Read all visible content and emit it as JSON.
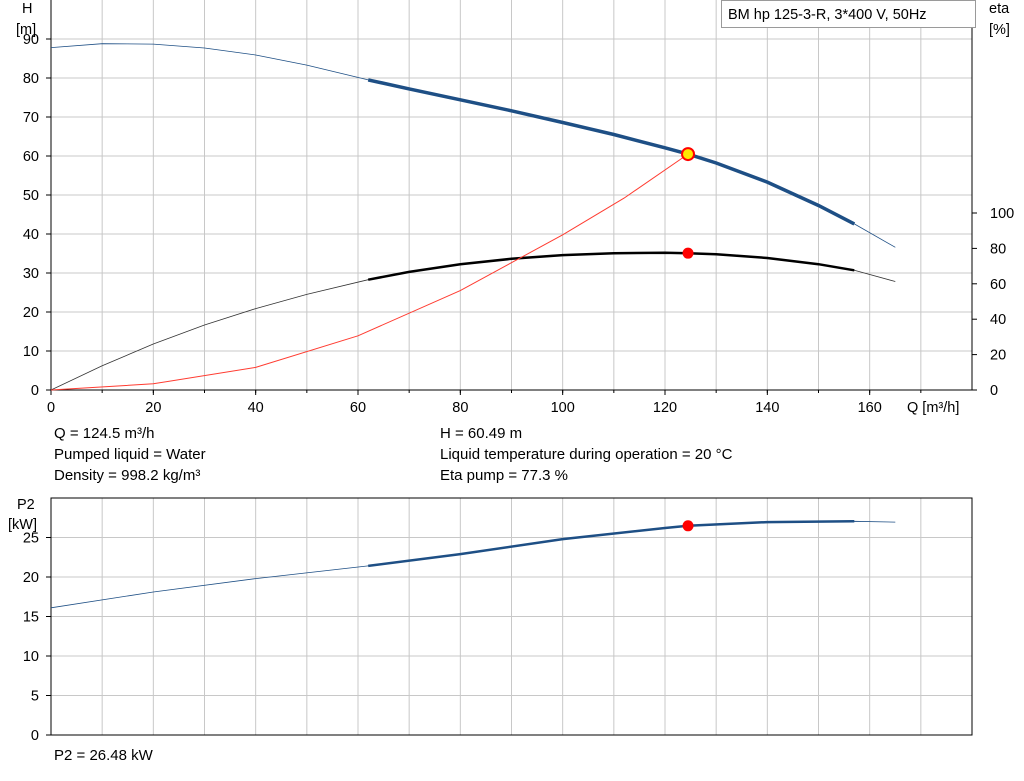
{
  "pump_title": "BM hp 125-3-R, 3*400 V, 50Hz",
  "info": {
    "q": "Q = 124.5 m³/h",
    "liquid": "Pumped liquid = Water",
    "density": "Density = 998.2 kg/m³",
    "h": "H = 60.49 m",
    "temperature": "Liquid temperature during operation = 20 °C",
    "eta": "Eta pump = 77.3 %",
    "p2": "P2 = 26.48 kW"
  },
  "colors": {
    "head_curve": "#1e4f85",
    "eta_curve": "#000000",
    "system_curve": "#ff3b30",
    "grid": "#c8c8c8",
    "marker_red": "#ff0000",
    "marker_yellow": "#ffe600"
  },
  "chart_data": [
    {
      "type": "line",
      "xlabel": "Q [m³/h]",
      "xlim": [
        0,
        180
      ],
      "x_ticks": [
        0,
        20,
        40,
        60,
        80,
        100,
        120,
        140,
        160
      ],
      "left_axis": {
        "label_line1": "H",
        "label_line2": "[m]",
        "ylim": [
          0,
          100
        ],
        "ticks": [
          0,
          10,
          20,
          30,
          40,
          50,
          60,
          70,
          80,
          90
        ]
      },
      "right_axis": {
        "label_line1": "eta",
        "label_line2": "[%]",
        "ylim": [
          0,
          100
        ],
        "ticks": [
          0,
          20,
          40,
          60,
          80,
          100
        ]
      },
      "grid": true,
      "operating_range": [
        62,
        157
      ],
      "series": [
        {
          "axis": "left",
          "x": [
            0,
            10,
            20,
            30,
            40,
            50,
            62,
            70,
            80,
            90,
            100,
            110,
            120,
            124.5,
            130,
            140,
            150,
            157,
            165
          ],
          "values": [
            87.8,
            88.8,
            88.7,
            87.7,
            85.9,
            83.3,
            79.5,
            77.2,
            74.4,
            71.6,
            68.6,
            65.5,
            62.1,
            60.49,
            58.2,
            53.3,
            47.3,
            42.6,
            36.6
          ]
        },
        {
          "axis": "right",
          "x": [
            0,
            10,
            20,
            30,
            40,
            50,
            62,
            70,
            80,
            90,
            100,
            110,
            120,
            124.5,
            130,
            140,
            150,
            157,
            165
          ],
          "values": [
            0,
            13.7,
            26.0,
            36.7,
            46.0,
            54.0,
            62.3,
            66.7,
            71.0,
            74.1,
            76.2,
            77.3,
            77.5,
            77.3,
            76.7,
            74.6,
            71.1,
            67.6,
            61.3
          ]
        },
        {
          "axis": "left",
          "x": [
            0,
            20,
            40,
            60,
            80,
            100,
            112,
            124.5
          ],
          "values": [
            0,
            1.6,
            5.8,
            13.9,
            25.5,
            39.8,
            49.2,
            60.49
          ]
        }
      ],
      "operating_point": {
        "x": 124.5,
        "h": 60.49,
        "eta": 77.3
      }
    },
    {
      "type": "line",
      "xlim": [
        0,
        180
      ],
      "left_axis": {
        "label_line1": "P2",
        "label_line2": "[kW]",
        "ylim": [
          0,
          30
        ],
        "ticks": [
          0,
          5,
          10,
          15,
          20,
          25
        ]
      },
      "grid": true,
      "operating_range": [
        62,
        157
      ],
      "series": [
        {
          "axis": "left",
          "x": [
            0,
            20,
            40,
            62,
            80,
            100,
            120,
            124.5,
            140,
            157,
            165
          ],
          "values": [
            16.1,
            18.1,
            19.8,
            21.4,
            22.9,
            24.8,
            26.2,
            26.48,
            26.95,
            27.05,
            26.95
          ]
        }
      ],
      "operating_point": {
        "x": 124.5,
        "p2": 26.48
      }
    }
  ]
}
